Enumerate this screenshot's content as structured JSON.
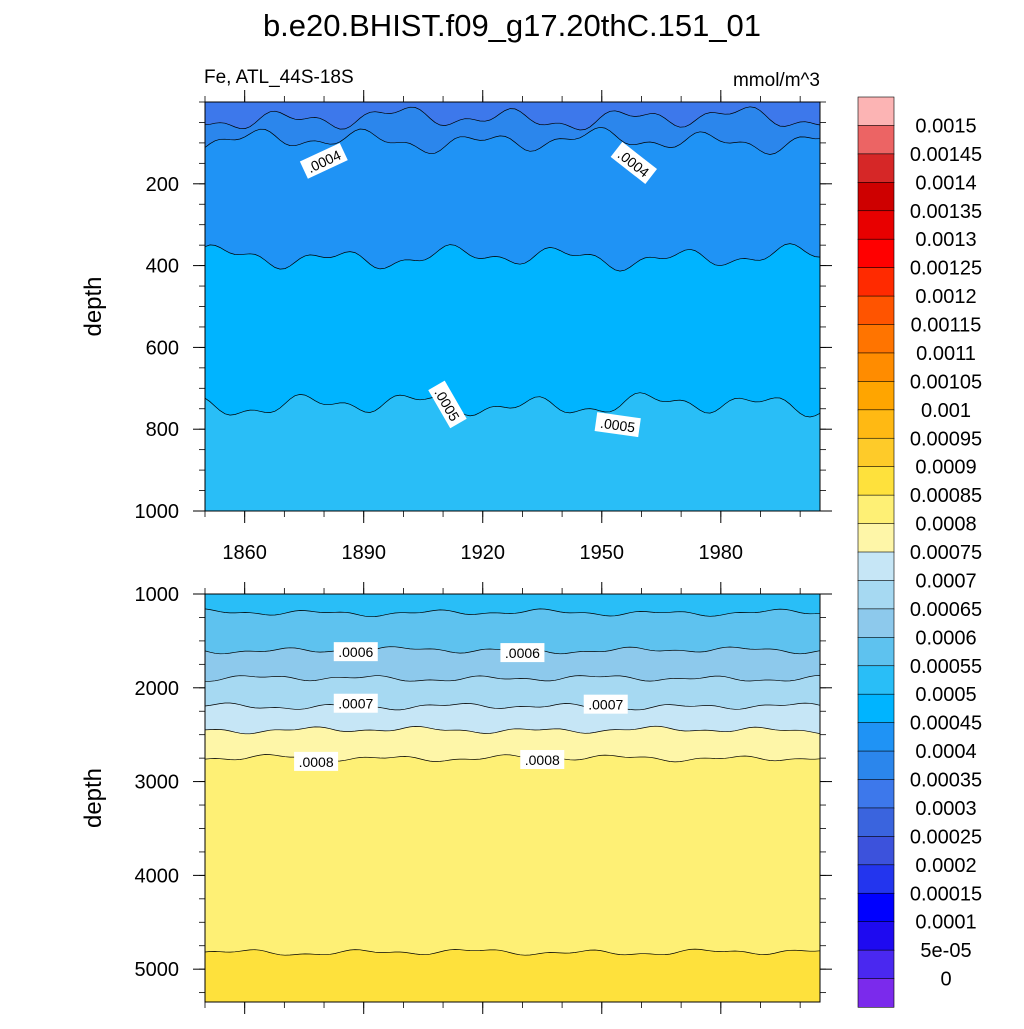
{
  "chart_data": {
    "type": "contour",
    "title": "b.e20.BHIST.f09_g17.20thC.151_01",
    "variable_label": "Fe, ATL_44S-18S",
    "units": "mmol/m^3",
    "xlim": [
      1850,
      2005
    ],
    "x_ticks": [
      1860,
      1890,
      1920,
      1950,
      1980
    ],
    "panels": [
      {
        "name": "upper",
        "ylabel": "depth",
        "ylim": [
          0,
          1000
        ],
        "y_ticks": [
          200,
          400,
          600,
          800,
          1000
        ],
        "bands": [
          {
            "from_depth": 0,
            "to_depth": 40,
            "color": "#3D78EB"
          },
          {
            "from_depth": 40,
            "to_depth": 95,
            "color": "#2B86EC"
          },
          {
            "from_depth": 95,
            "to_depth": 380,
            "color": "#1F93F5"
          },
          {
            "from_depth": 380,
            "to_depth": 740,
            "color": "#00B4FF"
          },
          {
            "from_depth": 740,
            "to_depth": 1000,
            "color": "#29BEF7"
          }
        ],
        "contour_labels": [
          {
            "text": ".0004",
            "x": 1880,
            "depth": 145,
            "angle": -25
          },
          {
            "text": ".0004",
            "x": 1958,
            "depth": 150,
            "angle": 38
          },
          {
            "text": ".0005",
            "x": 1911,
            "depth": 740,
            "angle": 60
          },
          {
            "text": ".0005",
            "x": 1954,
            "depth": 790,
            "angle": 8
          }
        ]
      },
      {
        "name": "lower",
        "ylabel": "depth",
        "ylim": [
          1000,
          5350
        ],
        "y_ticks": [
          1000,
          2000,
          3000,
          4000,
          5000
        ],
        "bands": [
          {
            "from_depth": 1000,
            "to_depth": 1200,
            "color": "#29BEF7"
          },
          {
            "from_depth": 1200,
            "to_depth": 1600,
            "color": "#5EC2EF"
          },
          {
            "from_depth": 1600,
            "to_depth": 1900,
            "color": "#8DC9EC"
          },
          {
            "from_depth": 1900,
            "to_depth": 2200,
            "color": "#A6D9F2"
          },
          {
            "from_depth": 2200,
            "to_depth": 2450,
            "color": "#C6E6F6"
          },
          {
            "from_depth": 2450,
            "to_depth": 2750,
            "color": "#FEF6A8"
          },
          {
            "from_depth": 2750,
            "to_depth": 4820,
            "color": "#FEF075"
          },
          {
            "from_depth": 4820,
            "to_depth": 5350,
            "color": "#FEE13C"
          }
        ],
        "contour_labels": [
          {
            "text": ".0006",
            "x": 1888,
            "depth": 1620,
            "angle": 0
          },
          {
            "text": ".0006",
            "x": 1930,
            "depth": 1630,
            "angle": 0
          },
          {
            "text": ".0007",
            "x": 1888,
            "depth": 2170,
            "angle": 0
          },
          {
            "text": ".0007",
            "x": 1951,
            "depth": 2180,
            "angle": 0
          },
          {
            "text": ".0008",
            "x": 1878,
            "depth": 2790,
            "angle": 0
          },
          {
            "text": ".0008",
            "x": 1935,
            "depth": 2770,
            "angle": 0
          }
        ]
      }
    ],
    "colorbar": {
      "labels": [
        "0.0015",
        "0.00145",
        "0.0014",
        "0.00135",
        "0.0013",
        "0.00125",
        "0.0012",
        "0.00115",
        "0.0011",
        "0.00105",
        "0.001",
        "0.00095",
        "0.0009",
        "0.00085",
        "0.0008",
        "0.00075",
        "0.0007",
        "0.00065",
        "0.0006",
        "0.00055",
        "0.0005",
        "0.00045",
        "0.0004",
        "0.00035",
        "0.0003",
        "0.00025",
        "0.0002",
        "0.00015",
        "0.0001",
        "5e-05",
        "0"
      ],
      "colors": [
        "#FCB4B4",
        "#EC6464",
        "#D62727",
        "#CE0000",
        "#E80000",
        "#FF0000",
        "#FF2A00",
        "#FF5400",
        "#FF7400",
        "#FF8C00",
        "#FFA500",
        "#FFB913",
        "#FECB29",
        "#FEE13C",
        "#FEF075",
        "#FEF6A8",
        "#C6E6F6",
        "#A6D9F2",
        "#8DC9EC",
        "#5EC2EF",
        "#29BEF7",
        "#00B4FF",
        "#1F93F5",
        "#2B86EC",
        "#3D78EB",
        "#3A64DE",
        "#3C52DC",
        "#2335EE",
        "#0000FF",
        "#1E0AF0",
        "#4A28F0",
        "#7B2AEC"
      ]
    }
  }
}
